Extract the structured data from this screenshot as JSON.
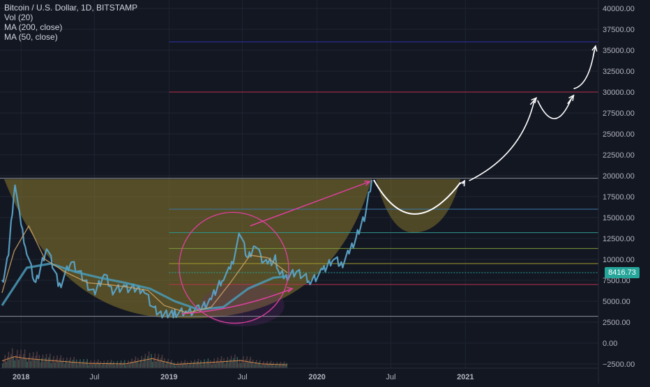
{
  "legend": {
    "symbol": "Bitcoin / U.S. Dollar, 1D, BITSTAMP",
    "indicator_volume": "Vol (20)",
    "indicator_ma200": "MA (200, close)",
    "indicator_ma50": "MA (50, close)"
  },
  "last_price": {
    "label": "8416.73",
    "value": 8416.73,
    "color": "#26a69a"
  },
  "colors": {
    "background": "#131722",
    "grid": "#1f2433",
    "axis_text": "#b2b5be",
    "price_line": "#5ba3c7",
    "ma_line": "#4a9bb8",
    "volume": "#4a3a3f",
    "bowl_fill": "#8a7a2b",
    "annotation_pink": "#e040a0",
    "projection_white": "#ffffff"
  },
  "chart_data": {
    "type": "line",
    "title": "Bitcoin / U.S. Dollar, 1D, BITSTAMP",
    "xlabel": "",
    "ylabel": "",
    "x_ticks": [
      "2018",
      "Jul",
      "2019",
      "Jul",
      "2020",
      "Jul",
      "2021"
    ],
    "x_tick_dates": [
      "2018-01-01",
      "2018-07-01",
      "2019-01-01",
      "2019-07-01",
      "2020-01-01",
      "2020-07-01",
      "2021-01-01"
    ],
    "y_ticks": [
      40000,
      37500,
      35000,
      32500,
      30000,
      27500,
      25000,
      22500,
      20000,
      17500,
      15000,
      12500,
      10000,
      7500,
      5000,
      2500,
      0,
      -2500
    ],
    "y_tick_labels": [
      "40000.00",
      "37500.00",
      "35000.00",
      "32500.00",
      "30000.00",
      "27500.00",
      "25000.00",
      "22500.00",
      "20000.00",
      "17500.00",
      "15000.00",
      "12500.00",
      "10000.00",
      "7500.00",
      "5000.00",
      "2500.00",
      "0.00",
      "−2500.00"
    ],
    "ylim": [
      -3000,
      41000
    ],
    "xlim": [
      "2017-11-10",
      "2021-11-25"
    ],
    "grid": true,
    "series": [
      {
        "name": "Bitcoin / U.S. Dollar",
        "x": [
          "2017-11-15",
          "2017-12-01",
          "2017-12-17",
          "2018-01-01",
          "2018-01-15",
          "2018-02-06",
          "2018-03-05",
          "2018-04-06",
          "2018-05-05",
          "2018-06-29",
          "2018-07-25",
          "2018-08-15",
          "2018-09-15",
          "2018-11-01",
          "2018-11-25",
          "2018-12-15",
          "2019-01-15",
          "2019-02-15",
          "2019-03-15",
          "2019-04-15",
          "2019-05-15",
          "2019-06-01",
          "2019-06-26",
          "2019-07-15",
          "2019-08-01",
          "2019-08-15",
          "2019-09-01",
          "2019-09-20",
          "2019-10-01",
          "2019-10-20",
          "2019-11-15",
          "2019-12-15",
          "2020-01-15",
          "2020-02-10",
          "2020-03-01",
          "2020-03-20",
          "2020-04-10",
          "2020-04-30",
          "2020-05-15"
        ],
        "values": [
          7000,
          10500,
          19400,
          14000,
          11000,
          7000,
          11500,
          6800,
          9800,
          5900,
          8200,
          6300,
          6600,
          6400,
          4000,
          3300,
          3600,
          3700,
          4000,
          5200,
          8000,
          8700,
          13200,
          10000,
          11800,
          10200,
          9600,
          10000,
          8200,
          8000,
          8500,
          7400,
          8500,
          10200,
          9300,
          10800,
          13000,
          15500,
          19500
        ]
      },
      {
        "name": "MA (200, close)",
        "x": [
          "2017-11-15",
          "2018-01-15",
          "2018-03-15",
          "2018-05-15",
          "2018-07-15",
          "2018-09-15",
          "2018-11-15",
          "2019-01-15",
          "2019-03-15",
          "2019-05-15",
          "2019-07-15",
          "2019-09-15",
          "2019-10-20"
        ],
        "values": [
          4500,
          9000,
          9500,
          8500,
          7800,
          7200,
          6500,
          5000,
          4000,
          4300,
          6500,
          7800,
          8000
        ]
      },
      {
        "name": "MA (50, close)",
        "x": [
          "2017-11-15",
          "2017-12-15",
          "2018-01-20",
          "2018-03-01",
          "2018-04-20",
          "2018-06-15",
          "2018-08-01",
          "2018-09-20",
          "2018-11-10",
          "2018-12-20",
          "2019-02-15",
          "2019-04-15",
          "2019-06-01",
          "2019-07-20",
          "2019-09-01",
          "2019-10-20"
        ],
        "values": [
          6000,
          11000,
          14000,
          10000,
          8500,
          7200,
          7000,
          6700,
          6300,
          4500,
          3600,
          4300,
          7200,
          10500,
          10200,
          8400
        ]
      }
    ],
    "horizontal_levels": [
      {
        "value": 36000,
        "color": "#3130a8"
      },
      {
        "value": 30000,
        "color": "#b8324d"
      },
      {
        "value": 19700,
        "color": "#8a8f99"
      },
      {
        "value": 16000,
        "color": "#3c78a8"
      },
      {
        "value": 13200,
        "color": "#2e9a8f"
      },
      {
        "value": 11300,
        "color": "#7d9a3a"
      },
      {
        "value": 9500,
        "color": "#a69c2d"
      },
      {
        "value": 8416.73,
        "color": "#26a69a"
      },
      {
        "value": 7000,
        "color": "#b8324d"
      },
      {
        "value": 3200,
        "color": "#8a8f99"
      }
    ],
    "volume": {
      "name": "Vol (20)",
      "x": [
        "2017-11-15",
        "2017-12-15",
        "2018-01-15",
        "2018-03-15",
        "2018-06-15",
        "2018-09-15",
        "2018-11-20",
        "2019-01-15",
        "2019-04-15",
        "2019-06-26",
        "2019-08-15",
        "2019-10-20"
      ],
      "values": [
        1500,
        2400,
        2000,
        1600,
        1000,
        900,
        2000,
        800,
        1200,
        1600,
        900,
        700
      ]
    }
  }
}
